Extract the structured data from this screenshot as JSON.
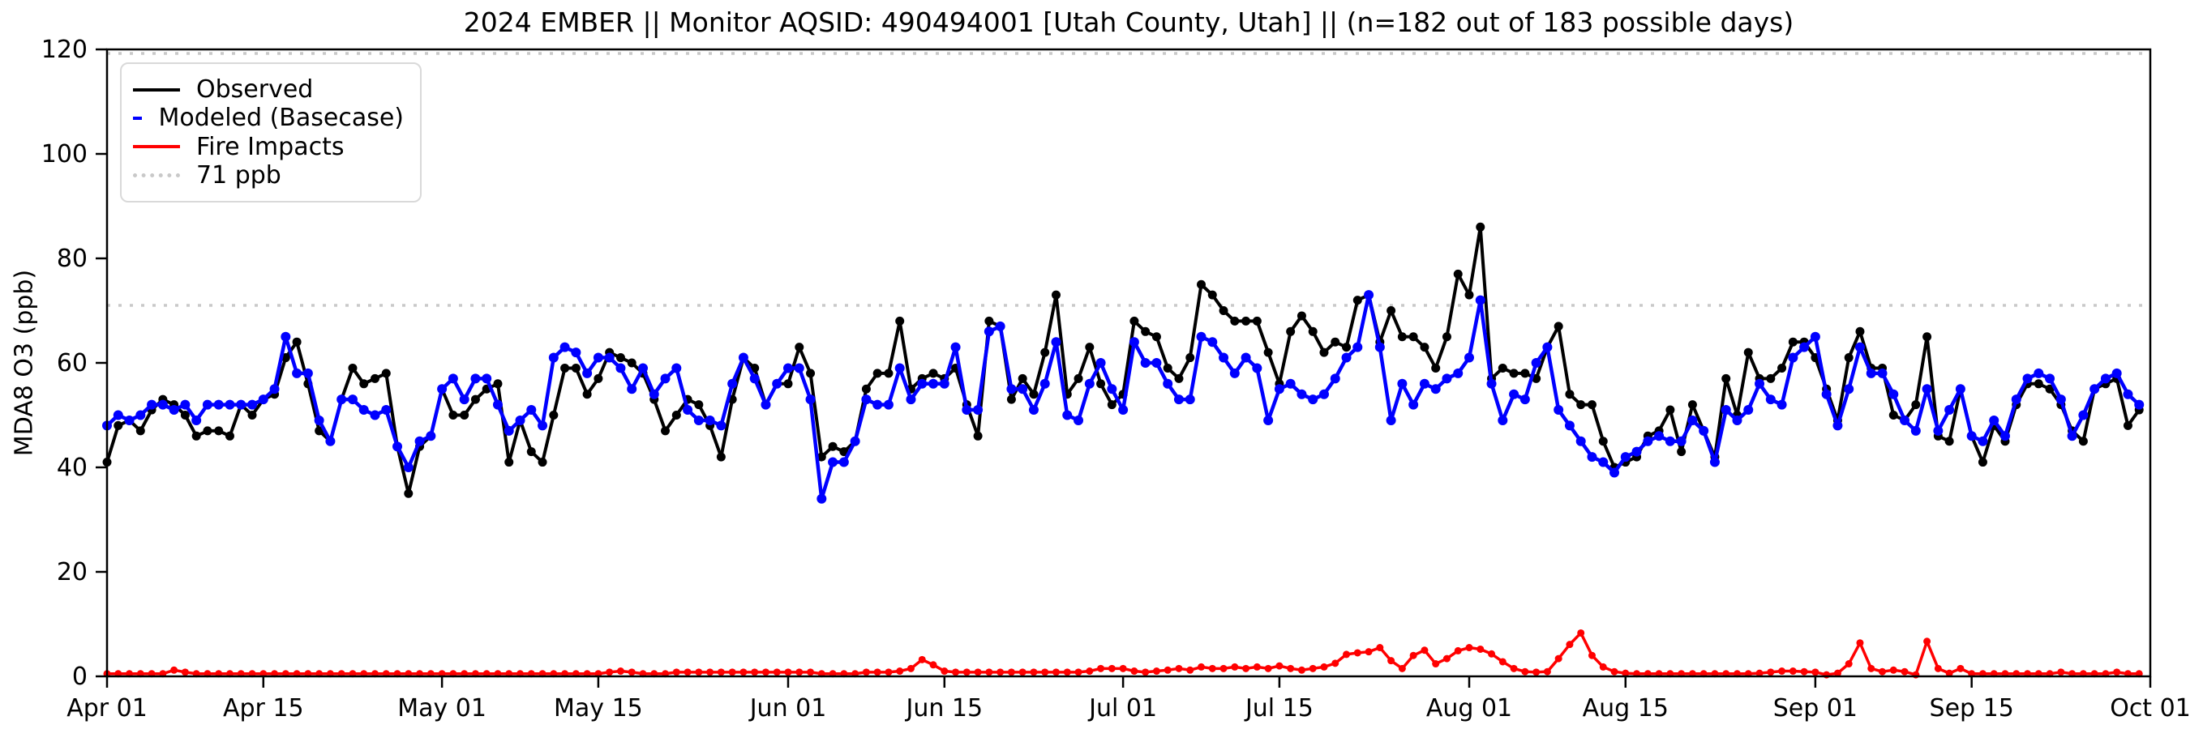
{
  "figure": {
    "title": "2024 EMBER || Monitor AQSID: 490494001 [Utah County, Utah] || (n=182 out of 183 possible days)",
    "ylabel": "MDA8 O3 (ppb)"
  },
  "legend": {
    "items": [
      {
        "label": "Observed",
        "color": "#000000",
        "style": "solid"
      },
      {
        "label": "Modeled (Basecase)",
        "color": "#0000ff",
        "style": "solid"
      },
      {
        "label": "Fire Impacts",
        "color": "#ff0000",
        "style": "solid"
      },
      {
        "label": "71 ppb",
        "color": "#c9c9c9",
        "style": "dotted"
      }
    ]
  },
  "chart_data": {
    "type": "line",
    "title": "2024 EMBER || Monitor AQSID: 490494001 [Utah County, Utah] || (n=182 out of 183 possible days)",
    "xlabel": "",
    "ylabel": "MDA8 O3 (ppb)",
    "ylim": [
      0,
      120
    ],
    "grid": false,
    "legend_position": "upper left",
    "x_unit": "daily values, day index 0 = Apr 01, 2024 through day 182 = Sep 30, 2024",
    "x_ticks": [
      {
        "label": "Apr 01",
        "day": 0
      },
      {
        "label": "Apr 15",
        "day": 14
      },
      {
        "label": "May 01",
        "day": 30
      },
      {
        "label": "May 15",
        "day": 44
      },
      {
        "label": "Jun 01",
        "day": 61
      },
      {
        "label": "Jun 15",
        "day": 75
      },
      {
        "label": "Jul 01",
        "day": 91
      },
      {
        "label": "Jul 15",
        "day": 105
      },
      {
        "label": "Aug 01",
        "day": 122
      },
      {
        "label": "Aug 15",
        "day": 136
      },
      {
        "label": "Sep 01",
        "day": 153
      },
      {
        "label": "Sep 15",
        "day": 167
      },
      {
        "label": "Oct 01",
        "day": 183
      }
    ],
    "y_ticks": [
      0,
      20,
      40,
      60,
      80,
      100,
      120
    ],
    "reference_lines": [
      {
        "value": 71,
        "label": "71 ppb",
        "style": "dotted",
        "color": "#c9c9c9"
      },
      {
        "value": 120,
        "label": "",
        "style": "dotted",
        "color": "#c9c9c9"
      }
    ],
    "series": [
      {
        "name": "Observed",
        "color": "#000000",
        "marker": "circle",
        "values": [
          41,
          48,
          49,
          47,
          51,
          53,
          52,
          50,
          46,
          47,
          47,
          46,
          52,
          50,
          53,
          54,
          61,
          64,
          56,
          47,
          45,
          53,
          59,
          56,
          57,
          58,
          44,
          35,
          44,
          46,
          55,
          50,
          50,
          53,
          55,
          56,
          41,
          49,
          43,
          41,
          50,
          59,
          59,
          54,
          57,
          62,
          61,
          60,
          58,
          53,
          47,
          50,
          53,
          52,
          48,
          42,
          53,
          61,
          59,
          52,
          56,
          56,
          63,
          58,
          42,
          44,
          43,
          45,
          55,
          58,
          58,
          68,
          55,
          57,
          58,
          57,
          59,
          52,
          46,
          68,
          67,
          53,
          57,
          54,
          62,
          73,
          54,
          57,
          63,
          56,
          52,
          54,
          68,
          66,
          65,
          59,
          57,
          61,
          75,
          73,
          70,
          68,
          68,
          68,
          62,
          56,
          66,
          69,
          66,
          62,
          64,
          63,
          72,
          73,
          64,
          70,
          65,
          65,
          63,
          59,
          65,
          77,
          73,
          86,
          57,
          59,
          58,
          58,
          57,
          63,
          67,
          54,
          52,
          52,
          45,
          40,
          41,
          42,
          46,
          47,
          51,
          43,
          52,
          47,
          42,
          57,
          50,
          62,
          57,
          57,
          59,
          64,
          64,
          61,
          55,
          49,
          61,
          66,
          59,
          59,
          50,
          49,
          52,
          65,
          46,
          45,
          55,
          46,
          41,
          48,
          45,
          52,
          56,
          56,
          55,
          52,
          47,
          45,
          55,
          56,
          57,
          48,
          51
        ]
      },
      {
        "name": "Modeled (Basecase)",
        "color": "#0000ff",
        "marker": "circle",
        "values": [
          48,
          50,
          49,
          50,
          52,
          52,
          51,
          52,
          49,
          52,
          52,
          52,
          52,
          52,
          53,
          55,
          65,
          58,
          58,
          49,
          45,
          53,
          53,
          51,
          50,
          51,
          44,
          40,
          45,
          46,
          55,
          57,
          53,
          57,
          57,
          52,
          47,
          49,
          51,
          48,
          61,
          63,
          62,
          58,
          61,
          61,
          59,
          55,
          59,
          54,
          57,
          59,
          51,
          49,
          49,
          48,
          56,
          61,
          57,
          52,
          56,
          59,
          59,
          53,
          34,
          41,
          41,
          45,
          53,
          52,
          52,
          59,
          53,
          56,
          56,
          56,
          63,
          51,
          51,
          66,
          67,
          55,
          55,
          51,
          56,
          64,
          50,
          49,
          56,
          60,
          55,
          51,
          64,
          60,
          60,
          56,
          53,
          53,
          65,
          64,
          61,
          58,
          61,
          59,
          49,
          55,
          56,
          54,
          53,
          54,
          57,
          61,
          63,
          73,
          63,
          49,
          56,
          52,
          56,
          55,
          57,
          58,
          61,
          72,
          56,
          49,
          54,
          53,
          60,
          63,
          51,
          48,
          45,
          42,
          41,
          39,
          42,
          43,
          45,
          46,
          45,
          45,
          49,
          47,
          41,
          51,
          49,
          51,
          56,
          53,
          52,
          61,
          63,
          65,
          54,
          48,
          55,
          63,
          58,
          58,
          54,
          49,
          47,
          55,
          47,
          51,
          55,
          46,
          45,
          49,
          46,
          53,
          57,
          58,
          57,
          53,
          46,
          50,
          55,
          57,
          58,
          54,
          52
        ]
      },
      {
        "name": "Fire Impacts",
        "color": "#ff0000",
        "marker": "circle",
        "values": [
          0.5,
          0.5,
          0.5,
          0.5,
          0.5,
          0.5,
          1.2,
          0.8,
          0.5,
          0.5,
          0.5,
          0.5,
          0.5,
          0.5,
          0.5,
          0.5,
          0.5,
          0.5,
          0.5,
          0.5,
          0.5,
          0.5,
          0.5,
          0.5,
          0.5,
          0.5,
          0.5,
          0.5,
          0.5,
          0.5,
          0.5,
          0.5,
          0.5,
          0.5,
          0.5,
          0.5,
          0.5,
          0.5,
          0.5,
          0.5,
          0.5,
          0.5,
          0.5,
          0.5,
          0.5,
          0.8,
          1.0,
          0.8,
          0.5,
          0.5,
          0.5,
          0.8,
          0.8,
          0.8,
          0.8,
          0.8,
          0.8,
          0.8,
          0.8,
          0.8,
          0.8,
          0.8,
          0.8,
          0.8,
          0.5,
          0.5,
          0.5,
          0.5,
          0.8,
          0.8,
          0.8,
          1.0,
          1.5,
          3.2,
          2.2,
          1.0,
          0.8,
          0.8,
          0.8,
          0.8,
          0.8,
          0.8,
          0.8,
          0.8,
          0.8,
          0.8,
          0.8,
          0.8,
          1.0,
          1.5,
          1.5,
          1.5,
          1.0,
          0.8,
          1.0,
          1.2,
          1.5,
          1.2,
          1.8,
          1.5,
          1.5,
          1.8,
          1.5,
          1.8,
          1.5,
          2.0,
          1.5,
          1.2,
          1.5,
          1.8,
          2.5,
          4.2,
          4.5,
          4.7,
          5.5,
          3.0,
          1.5,
          4.0,
          5.0,
          2.4,
          3.4,
          4.9,
          5.5,
          5.2,
          4.3,
          2.8,
          1.5,
          0.9,
          0.8,
          0.9,
          3.4,
          6.1,
          8.3,
          4.0,
          1.8,
          0.9,
          0.6,
          0.5,
          0.5,
          0.5,
          0.5,
          0.5,
          0.5,
          0.5,
          0.5,
          0.5,
          0.5,
          0.5,
          0.6,
          0.8,
          1.0,
          1.0,
          0.9,
          0.8,
          0.3,
          0.6,
          2.4,
          6.4,
          1.5,
          0.9,
          1.2,
          0.9,
          0.3,
          6.7,
          1.5,
          0.6,
          1.5,
          0.5,
          0.5,
          0.5,
          0.5,
          0.5,
          0.5,
          0.5,
          0.5,
          0.8,
          0.5,
          0.5,
          0.5,
          0.5,
          0.8,
          0.5,
          0.5
        ]
      }
    ]
  }
}
